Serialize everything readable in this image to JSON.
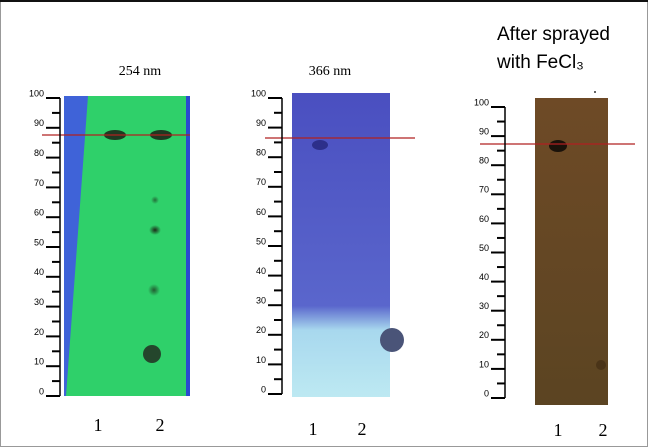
{
  "panels": [
    {
      "title": "254 nm",
      "ruler": [
        0,
        10,
        20,
        30,
        40,
        50,
        60,
        70,
        80,
        90,
        100
      ],
      "lanes": [
        "1",
        "2"
      ]
    },
    {
      "title": "366 nm",
      "ruler": [
        0,
        10,
        20,
        30,
        40,
        50,
        60,
        70,
        80,
        90,
        100
      ],
      "lanes": [
        "1",
        "2"
      ]
    },
    {
      "title_lines": [
        "After sprayed",
        "with FeCl₃"
      ],
      "ruler": [
        0,
        10,
        20,
        30,
        40,
        50,
        60,
        70,
        80,
        90,
        100
      ],
      "lanes": [
        "1",
        "2"
      ]
    }
  ]
}
